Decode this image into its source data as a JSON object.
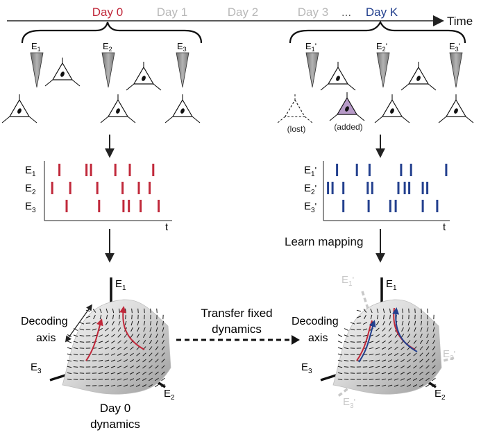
{
  "timeline": {
    "days": [
      {
        "label": "Day 0",
        "color": "#c0283a"
      },
      {
        "label": "Day 1",
        "color": "#b8b8b8"
      },
      {
        "label": "Day 2",
        "color": "#b8b8b8"
      },
      {
        "label": "Day 3",
        "color": "#b8b8b8"
      },
      {
        "label": "Day K",
        "color": "#23408e"
      }
    ],
    "ellipsis": "…",
    "time_label": "Time"
  },
  "day0": {
    "electrodes": [
      {
        "base": "E",
        "sub": "1",
        "prime": ""
      },
      {
        "base": "E",
        "sub": "2",
        "prime": ""
      },
      {
        "base": "E",
        "sub": "3",
        "prime": ""
      }
    ],
    "raster": {
      "rows": [
        {
          "base": "E",
          "sub": "1",
          "prime": "",
          "spikes": [
            0.12,
            0.42,
            0.47,
            0.74,
            0.9,
            1.16
          ]
        },
        {
          "base": "E",
          "sub": "2",
          "prime": "",
          "spikes": [
            0.04,
            0.24,
            0.54,
            0.82,
            1.0,
            1.12
          ]
        },
        {
          "base": "E",
          "sub": "3",
          "prime": "",
          "spikes": [
            0.2,
            0.56,
            0.83,
            0.89,
            1.02,
            1.22
          ]
        }
      ],
      "t_label": "t",
      "spike_color": "#c0283a"
    },
    "decoding_axis": "Decoding axis",
    "dynamics_label": "Day 0 dynamics",
    "axis_labels": [
      {
        "base": "E",
        "sub": "1"
      },
      {
        "base": "E",
        "sub": "3"
      },
      {
        "base": "E",
        "sub": "2"
      }
    ],
    "trajectory_color": "#c0283a"
  },
  "dayK": {
    "electrodes": [
      {
        "base": "E",
        "sub": "1",
        "prime": "'"
      },
      {
        "base": "E",
        "sub": "2",
        "prime": "'"
      },
      {
        "base": "E",
        "sub": "3",
        "prime": "'"
      }
    ],
    "lost_label": "(lost)",
    "added_label": "(added)",
    "added_color": "#b79ac8",
    "raster": {
      "rows": [
        {
          "base": "E",
          "sub": "1",
          "prime": "'",
          "spikes": [
            0.12,
            0.34,
            0.48,
            0.83,
            0.94,
            1.33
          ]
        },
        {
          "base": "E",
          "sub": "2",
          "prime": "'",
          "spikes": [
            0.02,
            0.07,
            0.19,
            0.46,
            0.51,
            0.8,
            0.87,
            0.92,
            1.07,
            1.12
          ]
        },
        {
          "base": "E",
          "sub": "3",
          "prime": "'",
          "spikes": [
            0.19,
            0.47,
            0.71,
            0.77,
            1.07,
            1.23
          ]
        }
      ],
      "t_label": "t",
      "spike_color": "#23408e"
    },
    "learn_mapping": "Learn mapping",
    "decoding_axis": "Decoding axis",
    "axis_labels": [
      {
        "base": "E",
        "sub": "1"
      },
      {
        "base": "E",
        "sub": "3"
      },
      {
        "base": "E",
        "sub": "2"
      }
    ],
    "ghost_axis_labels": [
      {
        "base": "E",
        "sub": "1",
        "prime": "'"
      },
      {
        "base": "E",
        "sub": "2",
        "prime": "'"
      },
      {
        "base": "E",
        "sub": "3",
        "prime": "'"
      }
    ],
    "trajectory_color": "#23408e",
    "ghost_color": "#c8c8c8"
  },
  "transfer_label": [
    "Transfer fixed",
    "dynamics"
  ]
}
